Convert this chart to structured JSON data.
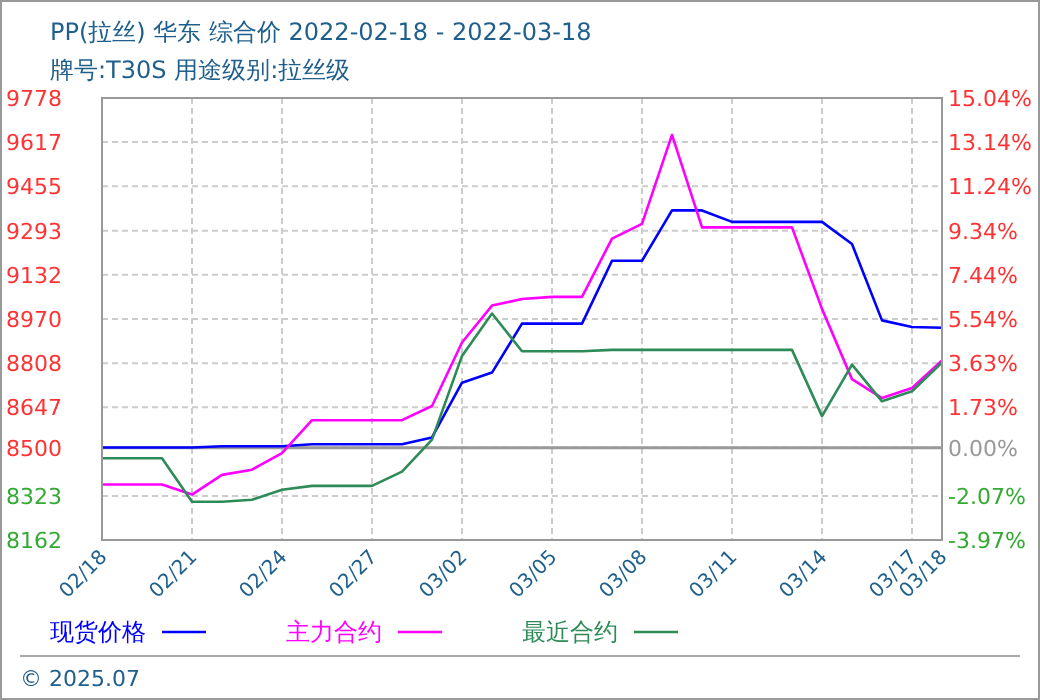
{
  "chart_data": {
    "type": "line",
    "title": "PP(拉丝) 华东 综合价 2022-02-18 - 2022-03-18",
    "subtitle": "牌号:T30S 用途级别:拉丝级",
    "x": [
      "2022-02-18",
      "2022-02-19",
      "2022-02-20",
      "2022-02-21",
      "2022-02-22",
      "2022-02-23",
      "2022-02-24",
      "2022-02-25",
      "2022-02-26",
      "2022-02-27",
      "2022-02-28",
      "2022-03-01",
      "2022-03-02",
      "2022-03-03",
      "2022-03-04",
      "2022-03-05",
      "2022-03-06",
      "2022-03-07",
      "2022-03-08",
      "2022-03-09",
      "2022-03-10",
      "2022-03-11",
      "2022-03-12",
      "2022-03-13",
      "2022-03-14",
      "2022-03-15",
      "2022-03-16",
      "2022-03-17",
      "2022-03-18"
    ],
    "series": [
      {
        "name": "现货价格",
        "color": "#0000ff",
        "values": [
          8500,
          8500,
          8500,
          8500,
          8505,
          8505,
          8505,
          8512,
          8512,
          8512,
          8512,
          8537,
          8737,
          8774,
          8953,
          8953,
          8953,
          9183,
          9183,
          9367,
          9367,
          9325,
          9325,
          9325,
          9325,
          9244,
          8965,
          8941,
          8938
        ]
      },
      {
        "name": "主力合约",
        "color": "#ff00ff",
        "values": [
          8365,
          8365,
          8365,
          8328,
          8400,
          8419,
          8480,
          8600,
          8600,
          8600,
          8600,
          8652,
          8884,
          9019,
          9043,
          9051,
          9051,
          9264,
          9318,
          9643,
          9305,
          9305,
          9305,
          9305,
          9007,
          8750,
          8681,
          8718,
          8818
        ]
      },
      {
        "name": "最近合约",
        "color": "#2e8b57",
        "values": [
          8461,
          8461,
          8461,
          8302,
          8302,
          8309,
          8346,
          8360,
          8360,
          8360,
          8412,
          8529,
          8835,
          8990,
          8852,
          8852,
          8852,
          8857,
          8857,
          8857,
          8857,
          8857,
          8857,
          8857,
          8615,
          8803,
          8669,
          8706,
          8811
        ]
      }
    ],
    "xlim": [
      "2022-02-18",
      "2022-03-18"
    ],
    "xticks": [
      {
        "value": "2022-02-18",
        "label": "02/18"
      },
      {
        "value": "2022-02-21",
        "label": "02/21"
      },
      {
        "value": "2022-02-24",
        "label": "02/24"
      },
      {
        "value": "2022-02-27",
        "label": "02/27"
      },
      {
        "value": "2022-03-02",
        "label": "03/02"
      },
      {
        "value": "2022-03-05",
        "label": "03/05"
      },
      {
        "value": "2022-03-08",
        "label": "03/08"
      },
      {
        "value": "2022-03-11",
        "label": "03/11"
      },
      {
        "value": "2022-03-14",
        "label": "03/14"
      },
      {
        "value": "2022-03-17",
        "label": "03/17"
      },
      {
        "value": "2022-03-18",
        "label": "03/18"
      }
    ],
    "ylim": [
      8162,
      9778
    ],
    "yticks": [
      9778,
      9617,
      9455,
      9293,
      9132,
      8970,
      8808,
      8647,
      8500,
      8323,
      8162
    ],
    "y2lim": [
      -3.97,
      15.04
    ],
    "y2ticks": [
      {
        "value": 15.04,
        "label": "15.04%"
      },
      {
        "value": 13.14,
        "label": "13.14%"
      },
      {
        "value": 11.24,
        "label": "11.24%"
      },
      {
        "value": 9.34,
        "label": "9.34%"
      },
      {
        "value": 7.44,
        "label": "7.44%"
      },
      {
        "value": 5.54,
        "label": "5.54%"
      },
      {
        "value": 3.63,
        "label": "3.63%"
      },
      {
        "value": 1.73,
        "label": "1.73%"
      },
      {
        "value": 0,
        "label": "0.00%"
      },
      {
        "value": -2.07,
        "label": "-2.07%"
      },
      {
        "value": -3.97,
        "label": "-3.97%"
      }
    ],
    "ref_lines": [
      {
        "axis": "y2",
        "value": 0,
        "color": "#999999"
      }
    ],
    "grid": true,
    "legend": "bottom",
    "marker": "none",
    "line_style": "solid",
    "annotations": [
      "© 2025.07"
    ]
  }
}
